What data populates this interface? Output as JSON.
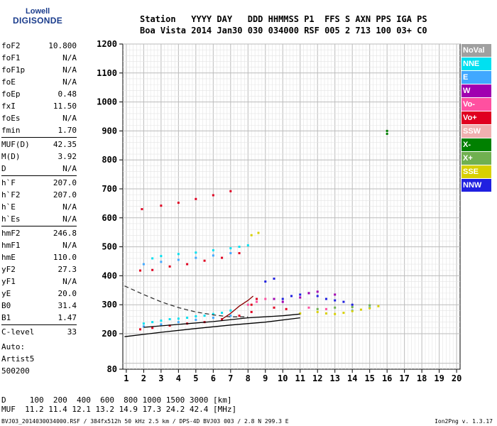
{
  "logo": {
    "line1": "Lowell",
    "line2": "DIGISONDE"
  },
  "header": {
    "line1": "Station   YYYY DAY   DDD HHMMSS P1  FFS S AXN PPS IGA PS",
    "line2": "Boa Vista 2014 Jan30 030 034000 RSF 005 2 713 100 03+ C0"
  },
  "params_groups": [
    [
      [
        "foF2",
        "10.800"
      ],
      [
        "foF1",
        "N/A"
      ],
      [
        "foF1p",
        "N/A"
      ],
      [
        "foE",
        "N/A"
      ],
      [
        "foEp",
        "0.48"
      ],
      [
        "fxI",
        "11.50"
      ],
      [
        "foEs",
        "N/A"
      ],
      [
        "fmin",
        "1.70"
      ]
    ],
    [
      [
        "MUF(D)",
        "42.35"
      ],
      [
        "M(D)",
        "3.92"
      ],
      [
        "D",
        "N/A"
      ]
    ],
    [
      [
        "h`F",
        "207.0"
      ],
      [
        "h`F2",
        "207.0"
      ],
      [
        "h`E",
        "N/A"
      ],
      [
        "h`Es",
        "N/A"
      ]
    ],
    [
      [
        "hmF2",
        "246.8"
      ],
      [
        "hmF1",
        "N/A"
      ],
      [
        "hmE",
        "110.0"
      ],
      [
        "yF2",
        "27.3"
      ],
      [
        "yF1",
        "N/A"
      ],
      [
        "yE",
        "20.0"
      ],
      [
        "B0",
        "31.4"
      ],
      [
        "B1",
        "1.47"
      ]
    ],
    [
      [
        "C-level",
        "33"
      ]
    ]
  ],
  "info": {
    "auto": "Auto:",
    "artist": "Artist5",
    "code": "500200"
  },
  "d_muf": {
    "d_line": "D     100  200  400  600  800 1000 1500 3000 [km]",
    "muf_line": "MUF  11.2 11.4 12.1 13.2 14.9 17.3 24.2 42.4 [MHz]"
  },
  "footer": {
    "left": "BVJ03_2014030034000.RSF / 384fx512h 50 kHz 2.5 km / DPS-4D BVJ03 003 / 2.8 N 299.3 E",
    "right": "Ion2Png v. 1.3.17"
  },
  "legend": [
    {
      "label": "NoVal",
      "color": "#a0a0a0"
    },
    {
      "label": "NNE",
      "color": "#00e0f0"
    },
    {
      "label": "E",
      "color": "#40a8ff"
    },
    {
      "label": "W",
      "color": "#a000b0"
    },
    {
      "label": "Vo-",
      "color": "#ff50a0"
    },
    {
      "label": "Vo+",
      "color": "#e00020"
    },
    {
      "label": "SSW",
      "color": "#f0b0b0"
    },
    {
      "label": "X-",
      "color": "#008000"
    },
    {
      "label": "X+",
      "color": "#70b050"
    },
    {
      "label": "SSE",
      "color": "#d8d000"
    },
    {
      "label": "NNW",
      "color": "#2020e0"
    }
  ],
  "chart_data": {
    "type": "scatter",
    "xlim": [
      0.8,
      20.2
    ],
    "ylim": [
      80,
      1200
    ],
    "xticks": [
      1,
      2,
      3,
      4,
      5,
      6,
      7,
      8,
      9,
      10,
      11,
      12,
      13,
      14,
      15,
      16,
      17,
      18,
      19,
      20
    ],
    "yticks": [
      80,
      200,
      300,
      400,
      500,
      600,
      700,
      800,
      900,
      1000,
      1100,
      1200
    ],
    "grid": true,
    "series": [
      {
        "color": "#e00020",
        "points": [
          [
            1.8,
            215
          ],
          [
            2.5,
            220
          ],
          [
            3.5,
            228
          ],
          [
            4.5,
            235
          ],
          [
            5.5,
            240
          ],
          [
            6.5,
            250
          ],
          [
            7.5,
            262
          ],
          [
            8.2,
            275
          ],
          [
            1.8,
            418
          ],
          [
            2.5,
            420
          ],
          [
            3.5,
            432
          ],
          [
            4.5,
            440
          ],
          [
            5.5,
            452
          ],
          [
            6.5,
            462
          ],
          [
            7.5,
            478
          ],
          [
            1.9,
            630
          ],
          [
            3,
            642
          ],
          [
            4,
            652
          ],
          [
            5,
            665
          ],
          [
            6,
            678
          ],
          [
            7,
            692
          ],
          [
            8.2,
            300
          ],
          [
            8.5,
            320
          ],
          [
            9.5,
            290
          ],
          [
            10.2,
            285
          ]
        ]
      },
      {
        "color": "#00e0f0",
        "points": [
          [
            2,
            235
          ],
          [
            2.5,
            240
          ],
          [
            3,
            245
          ],
          [
            3.5,
            250
          ],
          [
            4,
            252
          ],
          [
            4.5,
            255
          ],
          [
            5,
            260
          ],
          [
            5.5,
            262
          ],
          [
            6,
            268
          ],
          [
            6.5,
            272
          ],
          [
            7,
            280
          ],
          [
            2.5,
            460
          ],
          [
            3,
            468
          ],
          [
            4,
            475
          ],
          [
            5,
            480
          ],
          [
            6,
            488
          ],
          [
            7,
            495
          ],
          [
            7.5,
            500
          ],
          [
            8,
            505
          ]
        ]
      },
      {
        "color": "#40a8ff",
        "points": [
          [
            2,
            225
          ],
          [
            3,
            232
          ],
          [
            4,
            240
          ],
          [
            5,
            248
          ],
          [
            6,
            255
          ],
          [
            7,
            262
          ],
          [
            2,
            440
          ],
          [
            3,
            448
          ],
          [
            4,
            455
          ],
          [
            5,
            462
          ],
          [
            6,
            470
          ],
          [
            7,
            478
          ],
          [
            14,
            280
          ],
          [
            15,
            290
          ]
        ]
      },
      {
        "color": "#2020e0",
        "points": [
          [
            10,
            320
          ],
          [
            10.5,
            330
          ],
          [
            11,
            335
          ],
          [
            11.5,
            340
          ],
          [
            12,
            330
          ],
          [
            12.5,
            320
          ],
          [
            13,
            315
          ],
          [
            13.5,
            310
          ],
          [
            14,
            300
          ],
          [
            9,
            380
          ],
          [
            9.5,
            390
          ]
        ]
      },
      {
        "color": "#a000b0",
        "points": [
          [
            9.5,
            320
          ],
          [
            10,
            310
          ],
          [
            11,
            325
          ],
          [
            11.5,
            340
          ],
          [
            12,
            345
          ],
          [
            13,
            335
          ]
        ]
      },
      {
        "color": "#ff50a0",
        "points": [
          [
            8,
            300
          ],
          [
            8.5,
            310
          ],
          [
            9,
            320
          ],
          [
            11.5,
            290
          ],
          [
            12.5,
            285
          ]
        ]
      },
      {
        "color": "#d8d000",
        "points": [
          [
            11,
            270
          ],
          [
            12,
            275
          ],
          [
            12.5,
            270
          ],
          [
            13,
            268
          ],
          [
            13.5,
            272
          ],
          [
            14,
            278
          ],
          [
            14.5,
            283
          ],
          [
            15,
            288
          ],
          [
            15.5,
            295
          ],
          [
            8.2,
            540
          ],
          [
            8.6,
            548
          ]
        ]
      },
      {
        "color": "#70b050",
        "points": [
          [
            12,
            285
          ],
          [
            13,
            290
          ],
          [
            14,
            292
          ],
          [
            15,
            298
          ]
        ]
      },
      {
        "color": "#008000",
        "points": [
          [
            16,
            900
          ],
          [
            16,
            890
          ]
        ]
      }
    ],
    "curves": [
      {
        "name": "",
        "style": "solid",
        "color": "#000",
        "points": [
          [
            0.9,
            190
          ],
          [
            3,
            205
          ],
          [
            5,
            218
          ],
          [
            7,
            230
          ],
          [
            9,
            240
          ],
          [
            11,
            255
          ]
        ]
      },
      {
        "name": "",
        "style": "solid",
        "color": "#000",
        "points": [
          [
            2,
            222
          ],
          [
            4,
            232
          ],
          [
            6,
            242
          ],
          [
            8,
            255
          ],
          [
            10,
            262
          ],
          [
            11,
            268
          ]
        ]
      },
      {
        "name": "",
        "style": "dashed",
        "color": "#333",
        "points": [
          [
            0.9,
            365
          ],
          [
            2,
            335
          ],
          [
            3,
            310
          ],
          [
            4,
            290
          ],
          [
            5,
            275
          ],
          [
            6,
            265
          ],
          [
            7,
            258
          ],
          [
            8,
            258
          ]
        ]
      },
      {
        "name": "",
        "style": "solid",
        "color": "#8b0000",
        "points": [
          [
            6.5,
            250
          ],
          [
            7,
            270
          ],
          [
            7.5,
            295
          ],
          [
            8,
            315
          ],
          [
            8.3,
            330
          ]
        ]
      }
    ]
  }
}
